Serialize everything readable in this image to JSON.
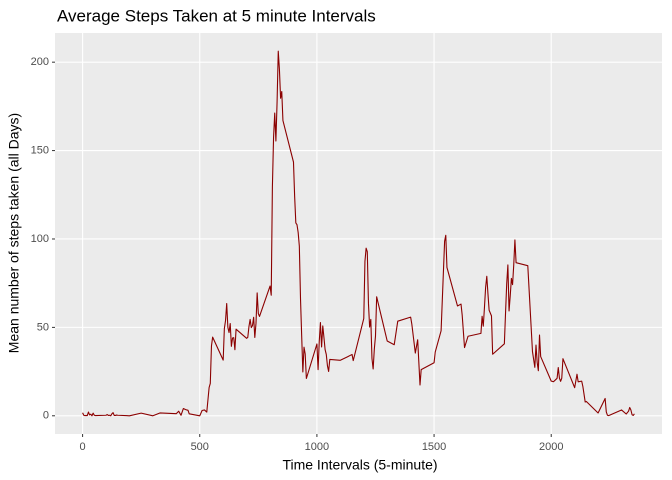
{
  "chart_data": {
    "type": "line",
    "title": "Average Steps Taken at 5 minute Intervals",
    "x_label": "Time Intervals (5-minute)",
    "y_label": "Mean number of steps taken (all Days)",
    "x": [
      0,
      5,
      10,
      15,
      20,
      25,
      30,
      35,
      40,
      45,
      50,
      55,
      100,
      105,
      110,
      115,
      120,
      125,
      130,
      135,
      140,
      145,
      150,
      200,
      250,
      300,
      330,
      400,
      410,
      420,
      430,
      440,
      450,
      455,
      500,
      510,
      520,
      530,
      540,
      545,
      550,
      555,
      600,
      605,
      610,
      615,
      620,
      625,
      630,
      635,
      640,
      645,
      650,
      655,
      700,
      705,
      710,
      715,
      720,
      725,
      730,
      735,
      740,
      745,
      750,
      755,
      800,
      805,
      810,
      815,
      820,
      825,
      830,
      835,
      840,
      845,
      850,
      855,
      900,
      905,
      910,
      915,
      920,
      925,
      930,
      935,
      940,
      945,
      950,
      955,
      1000,
      1005,
      1010,
      1015,
      1020,
      1025,
      1030,
      1035,
      1040,
      1045,
      1050,
      1055,
      1100,
      1130,
      1150,
      1155,
      1200,
      1205,
      1210,
      1215,
      1220,
      1225,
      1230,
      1235,
      1240,
      1245,
      1250,
      1255,
      1300,
      1330,
      1345,
      1400,
      1405,
      1420,
      1430,
      1440,
      1445,
      1500,
      1505,
      1530,
      1545,
      1550,
      1555,
      1600,
      1615,
      1620,
      1630,
      1645,
      1700,
      1705,
      1710,
      1715,
      1720,
      1725,
      1730,
      1735,
      1745,
      1750,
      1800,
      1805,
      1810,
      1815,
      1820,
      1825,
      1830,
      1835,
      1840,
      1845,
      1850,
      1900,
      1920,
      1930,
      1935,
      1940,
      1945,
      1950,
      1955,
      2000,
      2010,
      2025,
      2030,
      2035,
      2040,
      2045,
      2050,
      2100,
      2110,
      2115,
      2130,
      2135,
      2145,
      2150,
      2200,
      2230,
      2235,
      2240,
      2245,
      2300,
      2320,
      2330,
      2335,
      2340,
      2345,
      2350,
      2355
    ],
    "series": [
      {
        "color": "#8B0000",
        "values": [
          1.7,
          0.3,
          0.1,
          0.2,
          0.1,
          2.1,
          0.5,
          0.9,
          0,
          1.5,
          0.3,
          0.1,
          0.3,
          0.7,
          0.2,
          0.3,
          0,
          1.1,
          1.8,
          0.2,
          0.2,
          0.4,
          0.3,
          0,
          1.5,
          0,
          1.6,
          1.2,
          2.6,
          0.3,
          4.1,
          3.5,
          3.1,
          1.1,
          0,
          3,
          3.3,
          2.1,
          16,
          18.3,
          39.5,
          44.5,
          31.5,
          49.3,
          53.8,
          63.5,
          50,
          47.1,
          52.2,
          39.3,
          44,
          44.2,
          37.4,
          49,
          43.8,
          44.4,
          50.5,
          54.5,
          49.9,
          51,
          55.7,
          44.3,
          52.3,
          69.5,
          57.8,
          56.2,
          73.4,
          68.2,
          129.4,
          157.5,
          171.2,
          155.4,
          177.3,
          206.2,
          195.9,
          179.6,
          183.4,
          167,
          143.5,
          124,
          109.1,
          108.1,
          103.7,
          96,
          66.2,
          45.2,
          24.8,
          38.8,
          35,
          21.1,
          40.6,
          26.1,
          42,
          52.7,
          38.9,
          50.8,
          44.3,
          37.4,
          34.7,
          28.3,
          25.1,
          31.9,
          31.4,
          33.3,
          34.7,
          31.2,
          55,
          87.3,
          94.8,
          92.8,
          63.4,
          50.2,
          54.5,
          32.4,
          26.5,
          37.7,
          45.1,
          67.3,
          42.3,
          40.2,
          53.5,
          55.8,
          51.9,
          35.5,
          43,
          17.4,
          26.1,
          30,
          36.1,
          48.1,
          98.7,
          102.1,
          83.9,
          62.1,
          63.2,
          56.9,
          38.6,
          45,
          46.6,
          56.3,
          50.7,
          61.2,
          72.7,
          78.9,
          68.9,
          59.7,
          56.5,
          34.8,
          40.7,
          58,
          74.7,
          85.3,
          59.3,
          67.8,
          77.7,
          74.2,
          85.3,
          99.5,
          86.6,
          84.9,
          36.3,
          27.4,
          40,
          30.2,
          25.5,
          45.7,
          33.5,
          19.6,
          19.3,
          21.2,
          27.3,
          21.3,
          19.5,
          21.3,
          32.3,
          15.9,
          23.5,
          19.2,
          19.6,
          16.6,
          7.8,
          8.1,
          1.6,
          9.8,
          2.2,
          0.3,
          0.1,
          3.3,
          1,
          2.6,
          4.7,
          3.3,
          0.6,
          0.2,
          1.1
        ]
      }
    ],
    "xlim": [
      -117.75,
      2472.75
    ],
    "xticks": [
      0,
      500,
      1000,
      1500,
      2000
    ],
    "ylim": [
      -10.3,
      216.5
    ],
    "yticks": [
      0,
      50,
      100,
      150,
      200
    ],
    "grid": true
  }
}
